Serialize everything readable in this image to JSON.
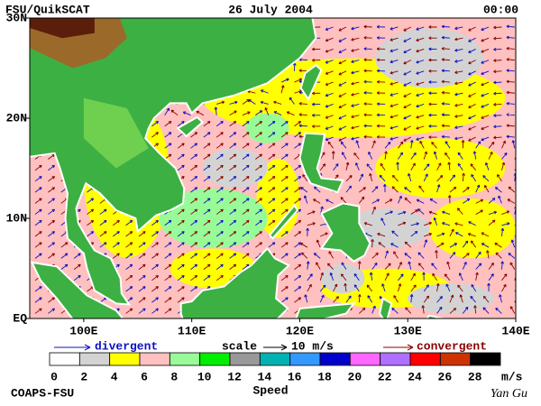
{
  "header": {
    "product": "FSU/QuikSCAT",
    "date": "26 July 2004",
    "time": "00:00"
  },
  "map": {
    "lonlim": [
      95,
      140
    ],
    "latlim": [
      0,
      30
    ],
    "lat_ticks": [
      {
        "value": 30,
        "label": "30N"
      },
      {
        "value": 20,
        "label": "20N"
      },
      {
        "value": 10,
        "label": "10N"
      },
      {
        "value": 0,
        "label": "EQ"
      }
    ],
    "lon_ticks": [
      {
        "value": 100,
        "label": "100E"
      },
      {
        "value": 110,
        "label": "110E"
      },
      {
        "value": 120,
        "label": "120E"
      },
      {
        "value": 130,
        "label": "130E"
      },
      {
        "value": 140,
        "label": "140E"
      }
    ]
  },
  "legend": {
    "divergent": "divergent",
    "scale": "scale",
    "scale_value": "10 m/s",
    "convergent": "convergent"
  },
  "colorbar": {
    "colors": [
      "#ffffff",
      "#d3d3d3",
      "#ffff00",
      "#ffc0c0",
      "#98fb98",
      "#00ee00",
      "#999999",
      "#00b2b2",
      "#3399ff",
      "#0000cc",
      "#ff66ff",
      "#b070ff",
      "#ff0000",
      "#cc3300",
      "#000000"
    ],
    "ticks": [
      0,
      2,
      4,
      6,
      8,
      10,
      12,
      14,
      16,
      18,
      20,
      22,
      24,
      26,
      28
    ],
    "unit": "m/s",
    "title": "Speed"
  },
  "footer": {
    "left": "COAPS-FSU",
    "right": "Yan Gu"
  }
}
